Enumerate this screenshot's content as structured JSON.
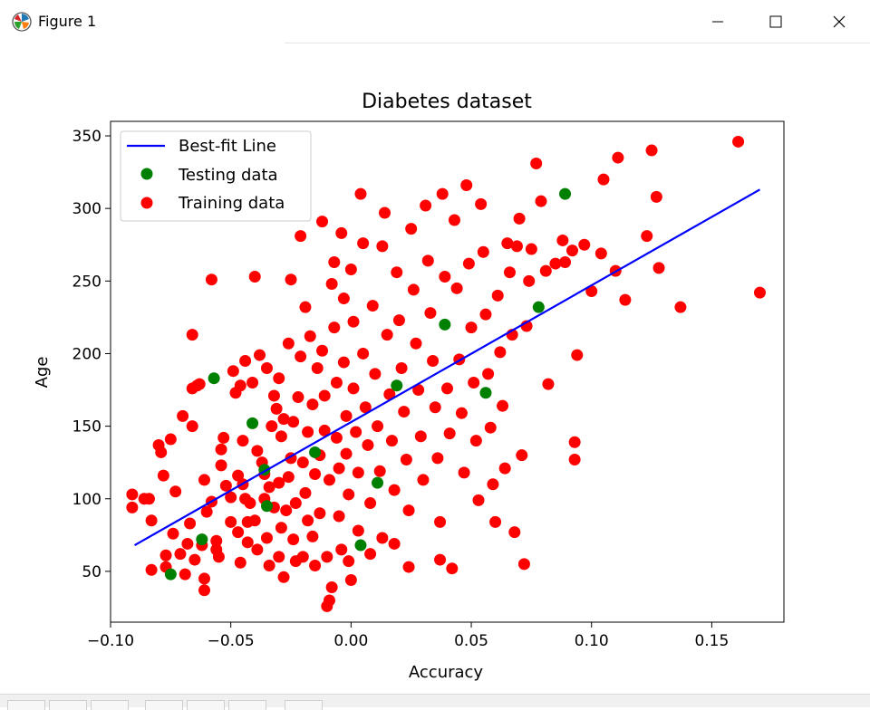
{
  "window": {
    "title": "Figure 1",
    "icon": "matplotlib-logo-icon",
    "buttons": [
      "minimize-icon",
      "maximize-icon",
      "close-icon"
    ]
  },
  "toolbar": {
    "icons": [
      "home-icon",
      "back-icon",
      "forward-icon",
      "pan-icon",
      "zoom-icon",
      "configure-icon",
      "save-icon"
    ]
  },
  "chart_data": {
    "type": "scatter",
    "title": "Diabetes dataset",
    "xlabel": "Accuracy",
    "ylabel": "Age",
    "xlim": [
      -0.1,
      0.18
    ],
    "ylim": [
      15,
      360
    ],
    "xticks": [
      -0.1,
      -0.05,
      0.0,
      0.05,
      0.1,
      0.15
    ],
    "xtick_labels": [
      "−0.10",
      "−0.05",
      "0.00",
      "0.05",
      "0.10",
      "0.15"
    ],
    "yticks": [
      50,
      100,
      150,
      200,
      250,
      300,
      350
    ],
    "ytick_labels": [
      "50",
      "100",
      "150",
      "200",
      "250",
      "300",
      "350"
    ],
    "grid": false,
    "legend_position": "top-left",
    "legend": [
      {
        "label": "Best-fit Line",
        "marker": "line",
        "color": "#0000ff"
      },
      {
        "label": "Testing data",
        "marker": "dot",
        "color": "#008000"
      },
      {
        "label": "Training data",
        "marker": "dot",
        "color": "#ff0000"
      }
    ],
    "series": [
      {
        "name": "Best-fit Line",
        "kind": "line",
        "color": "#0000ff",
        "points": [
          [
            -0.09,
            68
          ],
          [
            0.17,
            313
          ]
        ]
      },
      {
        "name": "Training data",
        "kind": "scatter",
        "color": "#ff0000",
        "points": [
          [
            -0.091,
            103
          ],
          [
            -0.091,
            94
          ],
          [
            -0.086,
            100
          ],
          [
            -0.084,
            100
          ],
          [
            -0.083,
            85
          ],
          [
            -0.083,
            51
          ],
          [
            -0.08,
            137
          ],
          [
            -0.079,
            132
          ],
          [
            -0.078,
            116
          ],
          [
            -0.077,
            61
          ],
          [
            -0.077,
            53
          ],
          [
            -0.075,
            141
          ],
          [
            -0.074,
            76
          ],
          [
            -0.073,
            105
          ],
          [
            -0.071,
            62
          ],
          [
            -0.07,
            157
          ],
          [
            -0.069,
            48
          ],
          [
            -0.068,
            69
          ],
          [
            -0.067,
            83
          ],
          [
            -0.066,
            213
          ],
          [
            -0.066,
            176
          ],
          [
            -0.066,
            150
          ],
          [
            -0.065,
            58
          ],
          [
            -0.064,
            178
          ],
          [
            -0.063,
            179
          ],
          [
            -0.062,
            68
          ],
          [
            -0.061,
            45
          ],
          [
            -0.061,
            113
          ],
          [
            -0.061,
            37
          ],
          [
            -0.06,
            91
          ],
          [
            -0.058,
            251
          ],
          [
            -0.058,
            98
          ],
          [
            -0.056,
            71
          ],
          [
            -0.056,
            65
          ],
          [
            -0.055,
            60
          ],
          [
            -0.054,
            134
          ],
          [
            -0.054,
            123
          ],
          [
            -0.053,
            142
          ],
          [
            -0.052,
            109
          ],
          [
            -0.05,
            101
          ],
          [
            -0.05,
            84
          ],
          [
            -0.049,
            188
          ],
          [
            -0.048,
            173
          ],
          [
            -0.047,
            77
          ],
          [
            -0.047,
            116
          ],
          [
            -0.046,
            56
          ],
          [
            -0.046,
            178
          ],
          [
            -0.045,
            140
          ],
          [
            -0.045,
            110
          ],
          [
            -0.044,
            100
          ],
          [
            -0.044,
            195
          ],
          [
            -0.043,
            70
          ],
          [
            -0.043,
            84
          ],
          [
            -0.042,
            97
          ],
          [
            -0.041,
            180
          ],
          [
            -0.04,
            253
          ],
          [
            -0.04,
            85
          ],
          [
            -0.039,
            133
          ],
          [
            -0.039,
            65
          ],
          [
            -0.038,
            199
          ],
          [
            -0.037,
            125
          ],
          [
            -0.036,
            100
          ],
          [
            -0.036,
            117
          ],
          [
            -0.035,
            73
          ],
          [
            -0.035,
            190
          ],
          [
            -0.034,
            54
          ],
          [
            -0.034,
            108
          ],
          [
            -0.033,
            150
          ],
          [
            -0.032,
            94
          ],
          [
            -0.032,
            171
          ],
          [
            -0.031,
            162
          ],
          [
            -0.03,
            60
          ],
          [
            -0.03,
            111
          ],
          [
            -0.03,
            183
          ],
          [
            -0.029,
            80
          ],
          [
            -0.029,
            143
          ],
          [
            -0.028,
            46
          ],
          [
            -0.028,
            155
          ],
          [
            -0.027,
            92
          ],
          [
            -0.026,
            207
          ],
          [
            -0.026,
            115
          ],
          [
            -0.025,
            251
          ],
          [
            -0.025,
            128
          ],
          [
            -0.024,
            72
          ],
          [
            -0.024,
            153
          ],
          [
            -0.023,
            57
          ],
          [
            -0.023,
            97
          ],
          [
            -0.022,
            170
          ],
          [
            -0.021,
            281
          ],
          [
            -0.021,
            198
          ],
          [
            -0.02,
            125
          ],
          [
            -0.02,
            60
          ],
          [
            -0.019,
            232
          ],
          [
            -0.019,
            104
          ],
          [
            -0.018,
            146
          ],
          [
            -0.018,
            85
          ],
          [
            -0.017,
            212
          ],
          [
            -0.016,
            74
          ],
          [
            -0.016,
            165
          ],
          [
            -0.015,
            117
          ],
          [
            -0.015,
            54
          ],
          [
            -0.014,
            190
          ],
          [
            -0.013,
            90
          ],
          [
            -0.013,
            130
          ],
          [
            -0.012,
            291
          ],
          [
            -0.012,
            202
          ],
          [
            -0.011,
            171
          ],
          [
            -0.011,
            147
          ],
          [
            -0.01,
            60
          ],
          [
            -0.01,
            26
          ],
          [
            -0.009,
            30
          ],
          [
            -0.009,
            113
          ],
          [
            -0.008,
            39
          ],
          [
            -0.008,
            248
          ],
          [
            -0.007,
            263
          ],
          [
            -0.007,
            218
          ],
          [
            -0.006,
            180
          ],
          [
            -0.006,
            142
          ],
          [
            -0.005,
            121
          ],
          [
            -0.005,
            88
          ],
          [
            -0.004,
            65
          ],
          [
            -0.004,
            283
          ],
          [
            -0.003,
            238
          ],
          [
            -0.003,
            194
          ],
          [
            -0.002,
            157
          ],
          [
            -0.002,
            131
          ],
          [
            -0.001,
            103
          ],
          [
            -0.001,
            57
          ],
          [
            0.0,
            44
          ],
          [
            0.0,
            258
          ],
          [
            0.001,
            222
          ],
          [
            0.001,
            176
          ],
          [
            0.002,
            146
          ],
          [
            0.003,
            118
          ],
          [
            0.003,
            78
          ],
          [
            0.004,
            310
          ],
          [
            0.005,
            276
          ],
          [
            0.005,
            200
          ],
          [
            0.006,
            163
          ],
          [
            0.007,
            137
          ],
          [
            0.008,
            97
          ],
          [
            0.008,
            62
          ],
          [
            0.009,
            233
          ],
          [
            0.01,
            186
          ],
          [
            0.011,
            150
          ],
          [
            0.012,
            119
          ],
          [
            0.013,
            73
          ],
          [
            0.013,
            274
          ],
          [
            0.014,
            297
          ],
          [
            0.015,
            213
          ],
          [
            0.016,
            172
          ],
          [
            0.017,
            140
          ],
          [
            0.018,
            106
          ],
          [
            0.018,
            69
          ],
          [
            0.019,
            256
          ],
          [
            0.02,
            223
          ],
          [
            0.021,
            190
          ],
          [
            0.022,
            160
          ],
          [
            0.023,
            127
          ],
          [
            0.024,
            92
          ],
          [
            0.024,
            53
          ],
          [
            0.025,
            286
          ],
          [
            0.026,
            244
          ],
          [
            0.027,
            207
          ],
          [
            0.028,
            175
          ],
          [
            0.029,
            143
          ],
          [
            0.03,
            113
          ],
          [
            0.031,
            302
          ],
          [
            0.032,
            264
          ],
          [
            0.033,
            228
          ],
          [
            0.034,
            195
          ],
          [
            0.035,
            163
          ],
          [
            0.036,
            128
          ],
          [
            0.037,
            84
          ],
          [
            0.037,
            58
          ],
          [
            0.038,
            310
          ],
          [
            0.039,
            253
          ],
          [
            0.04,
            176
          ],
          [
            0.041,
            145
          ],
          [
            0.042,
            52
          ],
          [
            0.043,
            292
          ],
          [
            0.044,
            245
          ],
          [
            0.045,
            196
          ],
          [
            0.046,
            159
          ],
          [
            0.047,
            118
          ],
          [
            0.048,
            316
          ],
          [
            0.049,
            262
          ],
          [
            0.05,
            218
          ],
          [
            0.051,
            180
          ],
          [
            0.052,
            140
          ],
          [
            0.053,
            99
          ],
          [
            0.054,
            303
          ],
          [
            0.055,
            270
          ],
          [
            0.056,
            227
          ],
          [
            0.057,
            186
          ],
          [
            0.058,
            149
          ],
          [
            0.059,
            110
          ],
          [
            0.06,
            84
          ],
          [
            0.061,
            240
          ],
          [
            0.062,
            201
          ],
          [
            0.063,
            164
          ],
          [
            0.064,
            121
          ],
          [
            0.065,
            276
          ],
          [
            0.066,
            256
          ],
          [
            0.067,
            213
          ],
          [
            0.068,
            77
          ],
          [
            0.069,
            274
          ],
          [
            0.07,
            293
          ],
          [
            0.071,
            130
          ],
          [
            0.072,
            55
          ],
          [
            0.073,
            219
          ],
          [
            0.074,
            250
          ],
          [
            0.075,
            272
          ],
          [
            0.077,
            331
          ],
          [
            0.079,
            305
          ],
          [
            0.081,
            257
          ],
          [
            0.082,
            179
          ],
          [
            0.085,
            262
          ],
          [
            0.088,
            278
          ],
          [
            0.089,
            263
          ],
          [
            0.092,
            271
          ],
          [
            0.093,
            139
          ],
          [
            0.093,
            127
          ],
          [
            0.094,
            199
          ],
          [
            0.097,
            275
          ],
          [
            0.1,
            243
          ],
          [
            0.104,
            269
          ],
          [
            0.105,
            320
          ],
          [
            0.11,
            257
          ],
          [
            0.111,
            335
          ],
          [
            0.114,
            237
          ],
          [
            0.123,
            281
          ],
          [
            0.125,
            340
          ],
          [
            0.127,
            308
          ],
          [
            0.128,
            259
          ],
          [
            0.137,
            232
          ],
          [
            0.161,
            346
          ],
          [
            0.17,
            242
          ]
        ]
      },
      {
        "name": "Testing data",
        "kind": "scatter",
        "color": "#008000",
        "points": [
          [
            -0.075,
            48
          ],
          [
            -0.062,
            72
          ],
          [
            -0.057,
            183
          ],
          [
            -0.041,
            152
          ],
          [
            -0.036,
            120
          ],
          [
            -0.035,
            95
          ],
          [
            -0.015,
            132
          ],
          [
            0.004,
            68
          ],
          [
            0.011,
            111
          ],
          [
            0.019,
            178
          ],
          [
            0.039,
            220
          ],
          [
            0.056,
            173
          ],
          [
            0.078,
            232
          ],
          [
            0.089,
            310
          ]
        ]
      }
    ]
  }
}
